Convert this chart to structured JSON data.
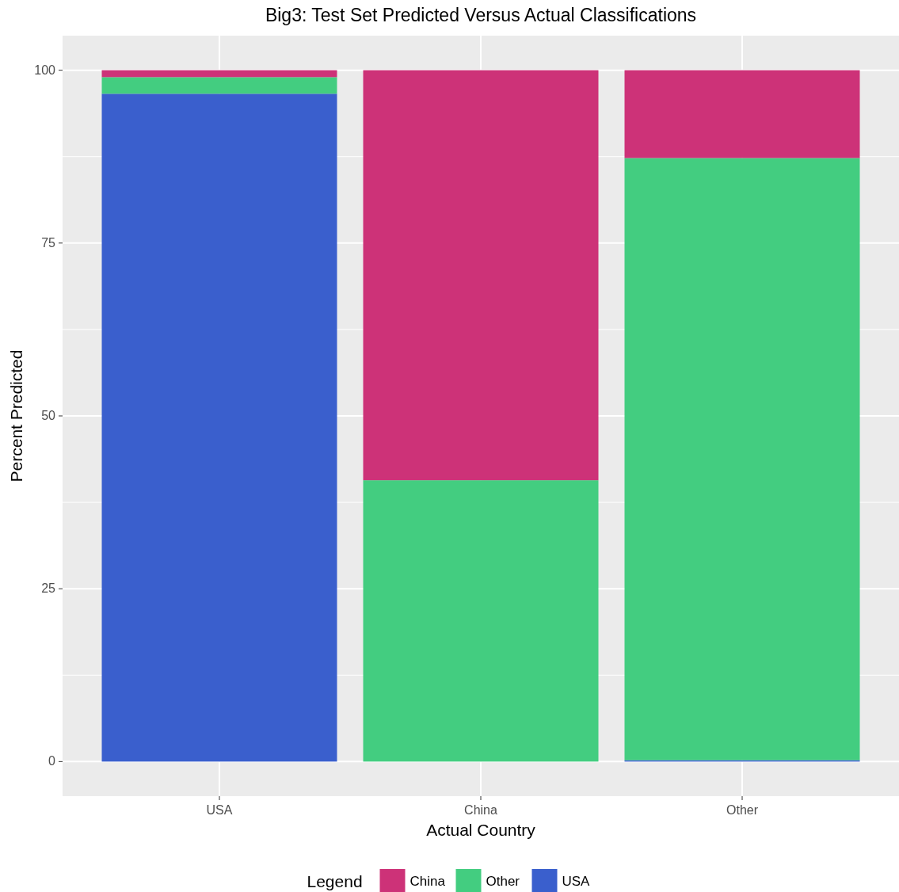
{
  "chart_data": {
    "type": "bar",
    "title": "Big3: Test Set Predicted Versus Actual Classifications",
    "xlabel": "Actual Country",
    "ylabel": "Percent Predicted",
    "legend_title": "Legend",
    "categories": [
      "USA",
      "China",
      "Other"
    ],
    "stacked": true,
    "series": [
      {
        "name": "USA",
        "color": "#3a5fcd",
        "values": [
          96.6,
          0,
          0.2
        ]
      },
      {
        "name": "Other",
        "color": "#43cd80",
        "values": [
          2.4,
          40.7,
          87.1
        ]
      },
      {
        "name": "China",
        "color": "#cd3278",
        "values": [
          1,
          59.3,
          12.7
        ]
      }
    ],
    "ylim": [
      -5,
      105
    ],
    "yticks": [
      0,
      25,
      50,
      75,
      100
    ],
    "grid": true,
    "legend": "bottom"
  }
}
